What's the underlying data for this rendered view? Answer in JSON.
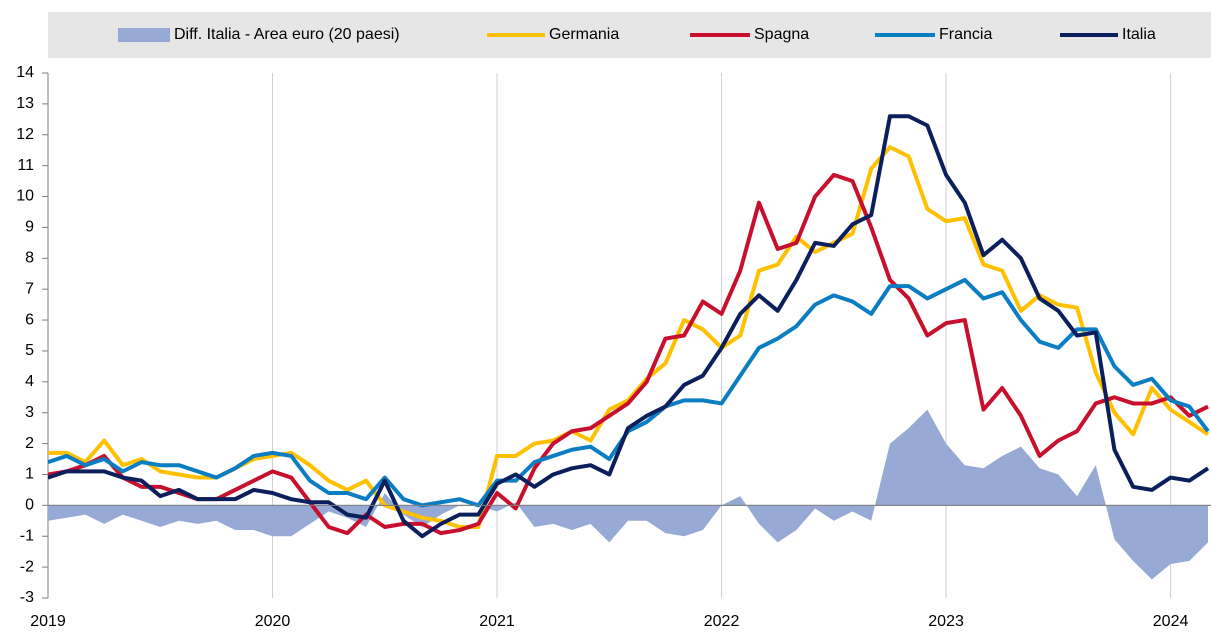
{
  "chart_data": {
    "type": "line",
    "categories": [
      "2019",
      null,
      null,
      null,
      null,
      null,
      null,
      null,
      null,
      null,
      null,
      null,
      "2020",
      null,
      null,
      null,
      null,
      null,
      null,
      null,
      null,
      null,
      null,
      null,
      "2021",
      null,
      null,
      null,
      null,
      null,
      null,
      null,
      null,
      null,
      null,
      null,
      "2022",
      null,
      null,
      null,
      null,
      null,
      null,
      null,
      null,
      null,
      null,
      null,
      "2023",
      null,
      null,
      null,
      null,
      null,
      null,
      null,
      null,
      null,
      null,
      null,
      "2024",
      null,
      null
    ],
    "series": [
      {
        "name": "Diff. Italia - Area euro (20 paesi)",
        "type": "area",
        "color": "#97aad5",
        "values": [
          -0.5,
          -0.4,
          -0.3,
          -0.6,
          -0.3,
          -0.5,
          -0.7,
          -0.5,
          -0.6,
          -0.5,
          -0.8,
          -0.8,
          -1.0,
          -1.0,
          -0.6,
          -0.2,
          -0.4,
          -0.7,
          0.4,
          -0.3,
          -0.7,
          -0.3,
          0.0,
          0.0,
          -0.2,
          0.1,
          -0.7,
          -0.6,
          -0.8,
          -0.6,
          -1.2,
          -0.5,
          -0.5,
          -0.9,
          -1.0,
          -0.8,
          0.0,
          0.3,
          -0.6,
          -1.2,
          -0.8,
          -0.1,
          -0.5,
          -0.2,
          -0.5,
          2.0,
          2.5,
          3.1,
          2.0,
          1.3,
          1.2,
          1.6,
          1.9,
          1.2,
          1.0,
          0.3,
          1.3,
          -1.1,
          -1.8,
          -2.4,
          -1.9,
          -1.8,
          -1.2
        ]
      },
      {
        "name": "Germania",
        "type": "line",
        "color": "#ffc000",
        "values": [
          1.7,
          1.7,
          1.4,
          2.1,
          1.3,
          1.5,
          1.1,
          1.0,
          0.9,
          0.9,
          1.2,
          1.5,
          1.6,
          1.7,
          1.3,
          0.8,
          0.5,
          0.8,
          0.0,
          -0.2,
          -0.4,
          -0.5,
          -0.7,
          -0.7,
          1.6,
          1.6,
          2.0,
          2.1,
          2.4,
          2.1,
          3.1,
          3.4,
          4.1,
          4.6,
          6.0,
          5.7,
          5.1,
          5.5,
          7.6,
          7.8,
          8.7,
          8.2,
          8.5,
          8.8,
          10.9,
          11.6,
          11.3,
          9.6,
          9.2,
          9.3,
          7.8,
          7.6,
          6.3,
          6.8,
          6.5,
          6.4,
          4.3,
          3.0,
          2.3,
          3.8,
          3.1,
          2.7,
          2.3
        ]
      },
      {
        "name": "Spagna",
        "type": "line",
        "color": "#c8102e",
        "values": [
          1.0,
          1.1,
          1.3,
          1.6,
          0.9,
          0.6,
          0.6,
          0.4,
          0.2,
          0.2,
          0.5,
          0.8,
          1.1,
          0.9,
          0.1,
          -0.7,
          -0.9,
          -0.3,
          -0.7,
          -0.6,
          -0.6,
          -0.9,
          -0.8,
          -0.6,
          0.4,
          -0.1,
          1.2,
          2.0,
          2.4,
          2.5,
          2.9,
          3.3,
          4.0,
          5.4,
          5.5,
          6.6,
          6.2,
          7.6,
          9.8,
          8.3,
          8.5,
          10.0,
          10.7,
          10.5,
          9.0,
          7.3,
          6.7,
          5.5,
          5.9,
          6.0,
          3.1,
          3.8,
          2.9,
          1.6,
          2.1,
          2.4,
          3.3,
          3.5,
          3.3,
          3.3,
          3.5,
          2.9,
          3.2
        ]
      },
      {
        "name": "Francia",
        "type": "line",
        "color": "#0b7dc2",
        "values": [
          1.4,
          1.6,
          1.3,
          1.5,
          1.1,
          1.4,
          1.3,
          1.3,
          1.1,
          0.9,
          1.2,
          1.6,
          1.7,
          1.6,
          0.8,
          0.4,
          0.4,
          0.2,
          0.9,
          0.2,
          0.0,
          0.1,
          0.2,
          0.0,
          0.8,
          0.8,
          1.4,
          1.6,
          1.8,
          1.9,
          1.5,
          2.4,
          2.7,
          3.2,
          3.4,
          3.4,
          3.3,
          4.2,
          5.1,
          5.4,
          5.8,
          6.5,
          6.8,
          6.6,
          6.2,
          7.1,
          7.1,
          6.7,
          7.0,
          7.3,
          6.7,
          6.9,
          6.0,
          5.3,
          5.1,
          5.7,
          5.7,
          4.5,
          3.9,
          4.1,
          3.4,
          3.2,
          2.4
        ]
      },
      {
        "name": "Italia",
        "type": "line",
        "color": "#0b1f5c",
        "values": [
          0.9,
          1.1,
          1.1,
          1.1,
          0.9,
          0.8,
          0.3,
          0.5,
          0.2,
          0.2,
          0.2,
          0.5,
          0.4,
          0.2,
          0.1,
          0.1,
          -0.3,
          -0.4,
          0.8,
          -0.5,
          -1.0,
          -0.6,
          -0.3,
          -0.3,
          0.7,
          1.0,
          0.6,
          1.0,
          1.2,
          1.3,
          1.0,
          2.5,
          2.9,
          3.2,
          3.9,
          4.2,
          5.1,
          6.2,
          6.8,
          6.3,
          7.3,
          8.5,
          8.4,
          9.1,
          9.4,
          12.6,
          12.6,
          12.3,
          10.7,
          9.8,
          8.1,
          8.6,
          8.0,
          6.7,
          6.3,
          5.5,
          5.6,
          1.8,
          0.6,
          0.5,
          0.9,
          0.8,
          1.2
        ]
      }
    ],
    "ylim": [
      -3,
      14
    ],
    "yticks": [
      -3,
      -2,
      -1,
      0,
      1,
      2,
      3,
      4,
      5,
      6,
      7,
      8,
      9,
      10,
      11,
      12,
      13,
      14
    ],
    "grid": true
  }
}
